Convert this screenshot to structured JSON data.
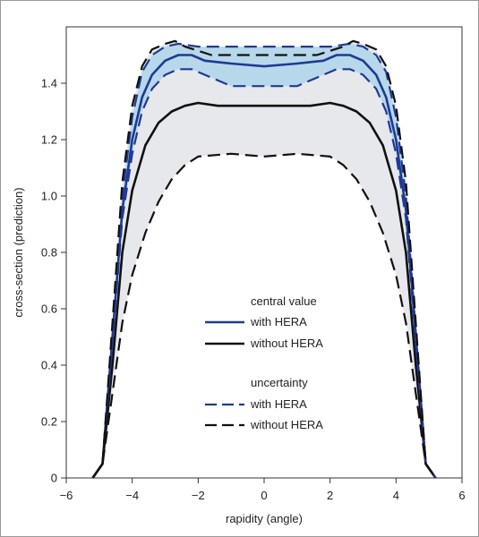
{
  "chart_data": {
    "type": "line",
    "title": "",
    "xlabel": "rapidity (angle)",
    "ylabel": "cross-section (prediction)",
    "xlim": [
      -6,
      6
    ],
    "ylim": [
      0,
      1.6
    ],
    "xticks": [
      -6,
      -4,
      -2,
      0,
      2,
      4,
      6
    ],
    "xtick_labels": [
      "−6",
      "−4",
      "−2",
      "0",
      "2",
      "4",
      "6"
    ],
    "yticks": [
      0,
      0.2,
      0.4,
      0.6,
      0.8,
      1.0,
      1.2,
      1.4
    ],
    "ytick_labels": [
      "0",
      "0.2",
      "0.4",
      "0.6",
      "0.8",
      "1.0",
      "1.2",
      "1.4"
    ],
    "grid": false,
    "legend": {
      "placement": "center-right",
      "central_heading": "central value",
      "uncertainty_heading": "uncertainty",
      "with_label": "with HERA",
      "without_label": "without HERA"
    },
    "colors": {
      "with_hera": "#1f3a93",
      "without_hera": "#111111",
      "band_with": "#b7d8ea",
      "band_without": "#e6e8ec"
    },
    "series": [
      {
        "style": "solid",
        "group": "with",
        "points": [
          [
            -5.2,
            0.0
          ],
          [
            -4.9,
            0.05
          ],
          [
            -4.6,
            0.5
          ],
          [
            -4.3,
            0.95
          ],
          [
            -4.0,
            1.2
          ],
          [
            -3.7,
            1.35
          ],
          [
            -3.4,
            1.43
          ],
          [
            -3.0,
            1.48
          ],
          [
            -2.6,
            1.5
          ],
          [
            -2.2,
            1.5
          ],
          [
            -1.8,
            1.48
          ],
          [
            -1.0,
            1.47
          ],
          [
            0,
            1.46
          ],
          [
            1.0,
            1.47
          ],
          [
            1.8,
            1.48
          ],
          [
            2.2,
            1.5
          ],
          [
            2.6,
            1.5
          ],
          [
            3.0,
            1.48
          ],
          [
            3.4,
            1.43
          ],
          [
            3.7,
            1.35
          ],
          [
            4.0,
            1.2
          ],
          [
            4.3,
            0.95
          ],
          [
            4.6,
            0.5
          ],
          [
            4.9,
            0.05
          ],
          [
            5.2,
            0.0
          ]
        ]
      },
      {
        "style": "solid",
        "group": "without",
        "points": [
          [
            -5.2,
            0.0
          ],
          [
            -4.9,
            0.05
          ],
          [
            -4.6,
            0.4
          ],
          [
            -4.3,
            0.8
          ],
          [
            -4.0,
            1.02
          ],
          [
            -3.6,
            1.18
          ],
          [
            -3.2,
            1.26
          ],
          [
            -2.8,
            1.3
          ],
          [
            -2.4,
            1.32
          ],
          [
            -2.0,
            1.33
          ],
          [
            -1.4,
            1.32
          ],
          [
            0,
            1.32
          ],
          [
            1.4,
            1.32
          ],
          [
            2.0,
            1.33
          ],
          [
            2.4,
            1.32
          ],
          [
            2.8,
            1.3
          ],
          [
            3.2,
            1.26
          ],
          [
            3.6,
            1.18
          ],
          [
            4.0,
            1.02
          ],
          [
            4.3,
            0.8
          ],
          [
            4.6,
            0.4
          ],
          [
            4.9,
            0.05
          ],
          [
            5.2,
            0.0
          ]
        ]
      },
      {
        "style": "dashed",
        "group": "with",
        "points": [
          [
            -5.2,
            0.0
          ],
          [
            -4.9,
            0.05
          ],
          [
            -4.6,
            0.52
          ],
          [
            -4.3,
            1.0
          ],
          [
            -4.0,
            1.28
          ],
          [
            -3.7,
            1.44
          ],
          [
            -3.4,
            1.5
          ],
          [
            -3.0,
            1.53
          ],
          [
            -2.6,
            1.54
          ],
          [
            -2.0,
            1.53
          ],
          [
            -1.0,
            1.53
          ],
          [
            0,
            1.53
          ],
          [
            1.0,
            1.53
          ],
          [
            2.0,
            1.53
          ],
          [
            2.6,
            1.54
          ],
          [
            3.0,
            1.53
          ],
          [
            3.4,
            1.5
          ],
          [
            3.7,
            1.44
          ],
          [
            4.0,
            1.28
          ],
          [
            4.3,
            1.0
          ],
          [
            4.6,
            0.52
          ],
          [
            4.9,
            0.05
          ],
          [
            5.2,
            0.0
          ]
        ]
      },
      {
        "style": "dashed",
        "group": "with",
        "points": [
          [
            -5.2,
            0.0
          ],
          [
            -4.9,
            0.05
          ],
          [
            -4.6,
            0.48
          ],
          [
            -4.3,
            0.92
          ],
          [
            -4.0,
            1.15
          ],
          [
            -3.7,
            1.3
          ],
          [
            -3.4,
            1.38
          ],
          [
            -3.0,
            1.43
          ],
          [
            -2.6,
            1.45
          ],
          [
            -2.2,
            1.45
          ],
          [
            -1.6,
            1.42
          ],
          [
            -1.0,
            1.39
          ],
          [
            0,
            1.39
          ],
          [
            1.0,
            1.39
          ],
          [
            1.6,
            1.42
          ],
          [
            2.2,
            1.45
          ],
          [
            2.6,
            1.45
          ],
          [
            3.0,
            1.43
          ],
          [
            3.4,
            1.38
          ],
          [
            3.7,
            1.3
          ],
          [
            4.0,
            1.15
          ],
          [
            4.3,
            0.92
          ],
          [
            4.6,
            0.48
          ],
          [
            4.9,
            0.05
          ],
          [
            5.2,
            0.0
          ]
        ]
      },
      {
        "style": "dashed",
        "group": "without",
        "points": [
          [
            -5.2,
            0.0
          ],
          [
            -4.9,
            0.05
          ],
          [
            -4.6,
            0.55
          ],
          [
            -4.3,
            1.05
          ],
          [
            -4.0,
            1.32
          ],
          [
            -3.7,
            1.46
          ],
          [
            -3.4,
            1.52
          ],
          [
            -3.0,
            1.54
          ],
          [
            -2.7,
            1.55
          ],
          [
            -2.4,
            1.53
          ],
          [
            -1.6,
            1.5
          ],
          [
            0,
            1.5
          ],
          [
            1.6,
            1.5
          ],
          [
            2.4,
            1.53
          ],
          [
            2.7,
            1.55
          ],
          [
            3.0,
            1.54
          ],
          [
            3.4,
            1.52
          ],
          [
            3.7,
            1.46
          ],
          [
            4.0,
            1.32
          ],
          [
            4.3,
            1.05
          ],
          [
            4.6,
            0.55
          ],
          [
            4.9,
            0.05
          ],
          [
            5.2,
            0.0
          ]
        ]
      },
      {
        "style": "dashed",
        "group": "without",
        "points": [
          [
            -5.2,
            0.0
          ],
          [
            -4.9,
            0.05
          ],
          [
            -4.6,
            0.3
          ],
          [
            -4.3,
            0.55
          ],
          [
            -4.0,
            0.72
          ],
          [
            -3.6,
            0.87
          ],
          [
            -3.2,
            0.98
          ],
          [
            -2.8,
            1.06
          ],
          [
            -2.4,
            1.11
          ],
          [
            -2.0,
            1.14
          ],
          [
            -1.0,
            1.15
          ],
          [
            0,
            1.14
          ],
          [
            1.0,
            1.15
          ],
          [
            2.0,
            1.14
          ],
          [
            2.4,
            1.11
          ],
          [
            2.8,
            1.06
          ],
          [
            3.2,
            0.98
          ],
          [
            3.6,
            0.87
          ],
          [
            4.0,
            0.72
          ],
          [
            4.3,
            0.55
          ],
          [
            4.6,
            0.3
          ],
          [
            4.9,
            0.05
          ],
          [
            5.2,
            0.0
          ]
        ]
      }
    ]
  }
}
